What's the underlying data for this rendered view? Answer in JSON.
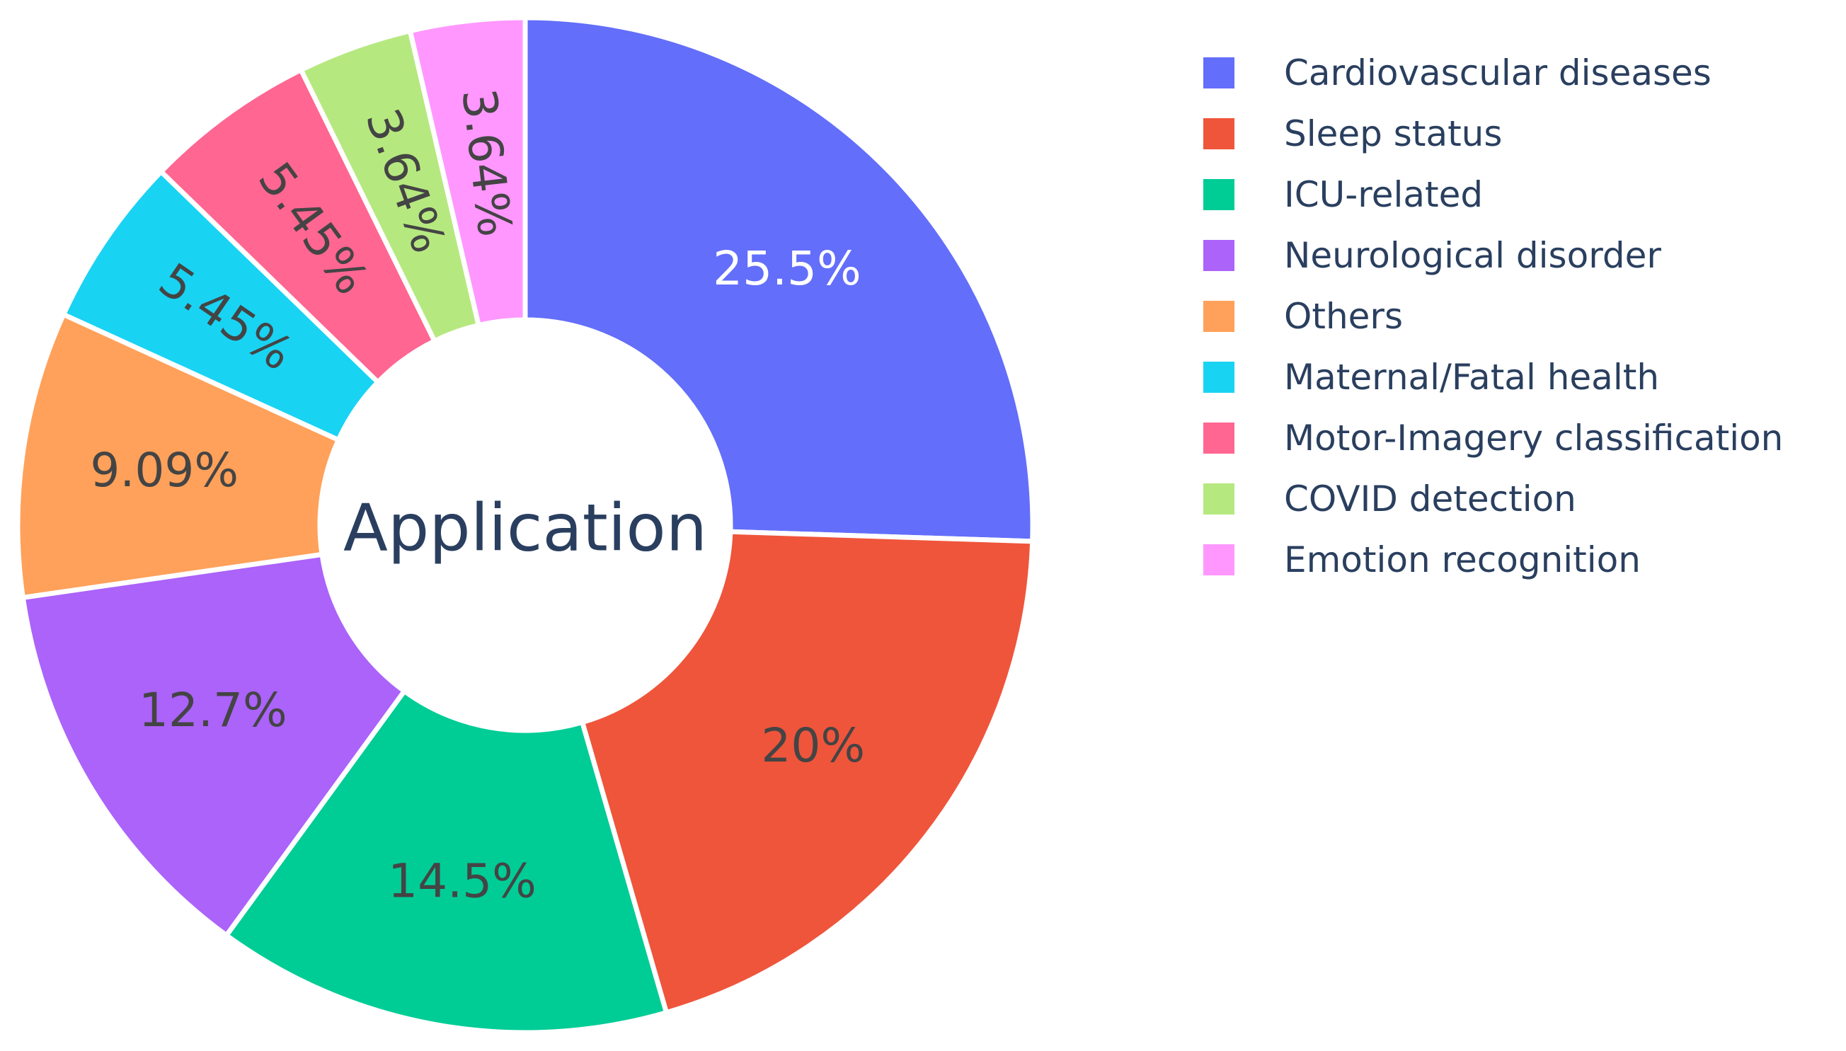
{
  "chart_data": {
    "type": "pie",
    "hole": true,
    "center_label": "Application",
    "slices": [
      {
        "name": "Cardiovascular diseases",
        "value": 25.5,
        "label": "25.5%",
        "color": "#636efa",
        "text_color": "#ffffff"
      },
      {
        "name": "Sleep status",
        "value": 20,
        "label": "20%",
        "color": "#ef553b",
        "text_color": "#444444"
      },
      {
        "name": "ICU-related",
        "value": 14.5,
        "label": "14.5%",
        "color": "#00cc96",
        "text_color": "#444444"
      },
      {
        "name": "Neurological disorder",
        "value": 12.7,
        "label": "12.7%",
        "color": "#ab63fa",
        "text_color": "#444444"
      },
      {
        "name": "Others",
        "value": 9.09,
        "label": "9.09%",
        "color": "#ffa15a",
        "text_color": "#444444"
      },
      {
        "name": "Maternal/Fatal health",
        "value": 5.45,
        "label": "5.45%",
        "color": "#19d3f3",
        "text_color": "#444444"
      },
      {
        "name": "Motor-Imagery classification",
        "value": 5.45,
        "label": "5.45%",
        "color": "#ff6692",
        "text_color": "#444444"
      },
      {
        "name": "COVID detection",
        "value": 3.64,
        "label": "3.64%",
        "color": "#b6e880",
        "text_color": "#444444"
      },
      {
        "name": "Emotion recognition",
        "value": 3.64,
        "label": "3.64%",
        "color": "#ff97ff",
        "text_color": "#444444"
      }
    ],
    "direction": "clockwise",
    "legend_position": "right"
  }
}
